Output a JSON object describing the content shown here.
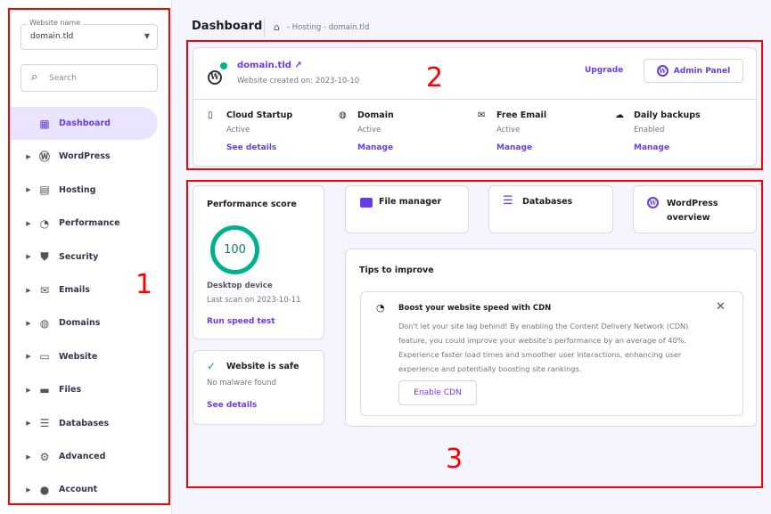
{
  "sidebar": {
    "website_label": "Website name",
    "website_value": "domain.tld",
    "search_placeholder": "Search",
    "items": [
      {
        "label": "Dashboard",
        "icon": "dashboard-icon",
        "active": true
      },
      {
        "label": "WordPress",
        "icon": "wordpress-icon"
      },
      {
        "label": "Hosting",
        "icon": "hosting-icon"
      },
      {
        "label": "Performance",
        "icon": "gauge-icon"
      },
      {
        "label": "Security",
        "icon": "shield-icon"
      },
      {
        "label": "Emails",
        "icon": "mail-icon"
      },
      {
        "label": "Domains",
        "icon": "globe-icon"
      },
      {
        "label": "Website",
        "icon": "laptop-icon"
      },
      {
        "label": "Files",
        "icon": "folder-icon"
      },
      {
        "label": "Databases",
        "icon": "list-icon"
      },
      {
        "label": "Advanced",
        "icon": "gear-icon"
      },
      {
        "label": "Account",
        "icon": "account-icon"
      }
    ]
  },
  "header": {
    "title": "Dashboard",
    "breadcrumb": "- Hosting - domain.tld"
  },
  "site": {
    "domain": "domain.tld",
    "created": "Website created on: 2023-10-10",
    "upgrade": "Upgrade",
    "admin_panel": "Admin Panel",
    "services": [
      {
        "name": "Cloud Startup",
        "status": "Active",
        "action": "See details",
        "icon": "server-icon"
      },
      {
        "name": "Domain",
        "status": "Active",
        "action": "Manage",
        "icon": "www-icon"
      },
      {
        "name": "Free Email",
        "status": "Active",
        "action": "Manage",
        "icon": "mail-icon"
      },
      {
        "name": "Daily backups",
        "status": "Enabled",
        "action": "Manage",
        "icon": "cloud-upload-icon"
      }
    ]
  },
  "performance": {
    "title": "Performance score",
    "score": "100",
    "device": "Desktop device",
    "last_scan": "Last scan on 2023-10-11",
    "action": "Run speed test"
  },
  "safety": {
    "title": "Website is safe",
    "subtitle": "No malware found",
    "action": "See details"
  },
  "shortcuts": [
    {
      "label": "File manager"
    },
    {
      "label": "Databases"
    },
    {
      "label": "WordPress overview"
    }
  ],
  "tips": {
    "title": "Tips to improve",
    "tip_title": "Boost your website speed with CDN",
    "tip_body": "Don't let your site lag behind! By enabling the Content Delivery Network (CDN) feature, you could improve your website's performance by an average of 40%. Experience faster load times and smoother user interactions, enhancing user experience and potentially boosting site rankings.",
    "action": "Enable CDN"
  },
  "annotations": [
    "1",
    "2",
    "3"
  ],
  "colors": {
    "accent": "#673de6",
    "success": "#00b090",
    "annotation": "#ff0000"
  }
}
